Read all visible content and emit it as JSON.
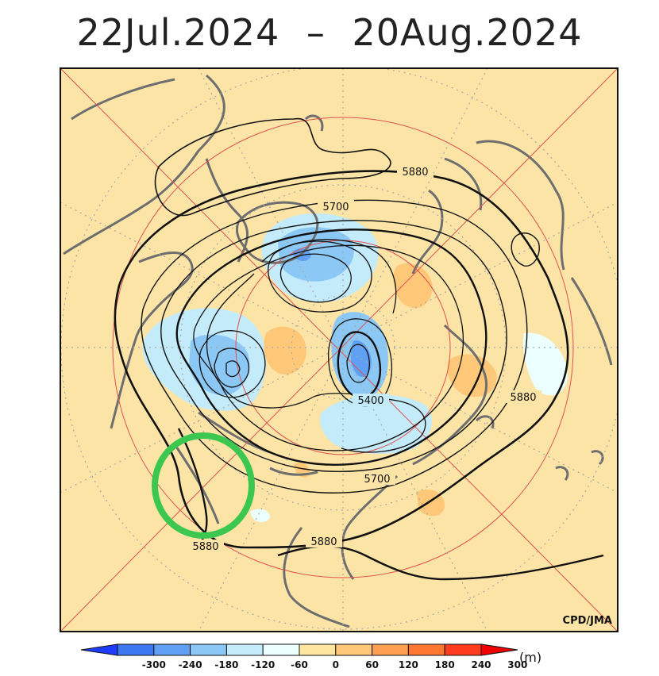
{
  "title": {
    "start": "22Jul.2024",
    "separator": "–",
    "end": "20Aug.2024"
  },
  "credit": "CPD/JMA",
  "contour_labels": [
    "5880",
    "5700",
    "5400",
    "5880",
    "5700",
    "5880",
    "5880"
  ],
  "colorbar": {
    "ticks": [
      "-300",
      "-240",
      "-180",
      "-120",
      "-60",
      "0",
      "60",
      "120",
      "180",
      "240",
      "300"
    ],
    "unit": "(m)",
    "colors": [
      "#1e3cff",
      "#3c78f0",
      "#5fa0f5",
      "#8cc8f5",
      "#c3ebfa",
      "#ebffff",
      "#ffe6a0",
      "#ffc878",
      "#ffa050",
      "#ff7832",
      "#ff3c1e",
      "#f00000"
    ]
  },
  "colors": {
    "background": "#fbe4a6",
    "coast": "#6e6e6e",
    "highlight_circle": "#3cc850",
    "grid_red": "#e05050"
  }
}
